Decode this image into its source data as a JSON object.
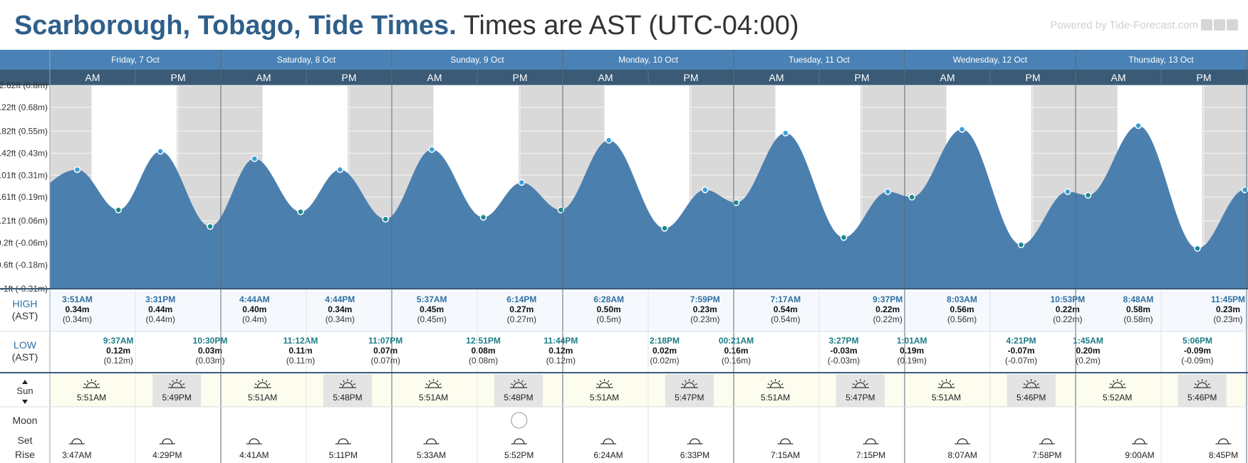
{
  "header": {
    "location": "Scarborough, Tobago, Tide Times.",
    "timezone": "Times are AST (UTC-04:00)",
    "powered_by": "Powered by Tide-Forecast.com"
  },
  "colors": {
    "header_bar": "#4a82b5",
    "subheader_bar": "#3a5a76",
    "tide_fill": "#4b7fae",
    "night": "#d9d9d9",
    "high_row": "#f5f9fd",
    "sun_row": "#fcfcef",
    "accent": "#2a8fbd",
    "label_blue": "#2f6fa3",
    "low_label": "#1a7e86"
  },
  "chart_data": {
    "type": "area",
    "title": "Scarborough, Tobago, Tide Times.",
    "subtitle": "Times are AST (UTC-04:00)",
    "x_unit": "hours from Fri 7 Oct 00:00 AST",
    "y_unit": "m",
    "ylim": [
      -0.31,
      0.8
    ],
    "y_ticks": [
      {
        "m": 0.8,
        "label": "2.62ft (0.8m)"
      },
      {
        "m": 0.68,
        "label": "2.22ft (0.68m)"
      },
      {
        "m": 0.55,
        "label": "1.82ft (0.55m)"
      },
      {
        "m": 0.43,
        "label": "1.42ft (0.43m)"
      },
      {
        "m": 0.31,
        "label": "1.01ft (0.31m)"
      },
      {
        "m": 0.19,
        "label": "0.61ft (0.19m)"
      },
      {
        "m": 0.06,
        "label": "0.21ft (0.06m)"
      },
      {
        "m": -0.06,
        "label": "-0.2ft (-0.06m)"
      },
      {
        "m": -0.18,
        "label": "-0.6ft (-0.18m)"
      },
      {
        "m": -0.31,
        "label": "-1ft (-0.31m)"
      }
    ],
    "days": [
      {
        "label": "Friday, 7 Oct"
      },
      {
        "label": "Saturday, 8 Oct"
      },
      {
        "label": "Sunday, 9 Oct"
      },
      {
        "label": "Monday, 10 Oct"
      },
      {
        "label": "Tuesday, 11 Oct"
      },
      {
        "label": "Wednesday, 12 Oct"
      },
      {
        "label": "Thursday, 13 Oct"
      }
    ],
    "ampm": [
      "AM",
      "PM"
    ],
    "tide_events": [
      {
        "t": -8.0,
        "h": 0.03
      },
      {
        "t": 3.85,
        "h": 0.34,
        "type": "high",
        "time": "3:51AM",
        "m": "0.34m",
        "ft": "(0.34m)"
      },
      {
        "t": 9.62,
        "h": 0.12,
        "type": "low",
        "time": "9:37AM",
        "m": "0.12m",
        "ft": "(0.12m)"
      },
      {
        "t": 15.52,
        "h": 0.44,
        "type": "high",
        "time": "3:31PM",
        "m": "0.44m",
        "ft": "(0.44m)"
      },
      {
        "t": 22.5,
        "h": 0.03,
        "type": "low",
        "time": "10:30PM",
        "m": "0.03m",
        "ft": "(0.03m)"
      },
      {
        "t": 28.73,
        "h": 0.4,
        "type": "high",
        "time": "4:44AM",
        "m": "0.40m",
        "ft": "(0.4m)"
      },
      {
        "t": 35.2,
        "h": 0.11,
        "type": "low",
        "time": "11:12AM",
        "m": "0.11m",
        "ft": "(0.11m)"
      },
      {
        "t": 40.73,
        "h": 0.34,
        "type": "high",
        "time": "4:44PM",
        "m": "0.34m",
        "ft": "(0.34m)"
      },
      {
        "t": 47.12,
        "h": 0.07,
        "type": "low",
        "time": "11:07PM",
        "m": "0.07m",
        "ft": "(0.07m)"
      },
      {
        "t": 53.62,
        "h": 0.45,
        "type": "high",
        "time": "5:37AM",
        "m": "0.45m",
        "ft": "(0.45m)"
      },
      {
        "t": 60.85,
        "h": 0.08,
        "type": "low",
        "time": "12:51PM",
        "m": "0.08m",
        "ft": "(0.08m)"
      },
      {
        "t": 66.23,
        "h": 0.27,
        "type": "high",
        "time": "6:14PM",
        "m": "0.27m",
        "ft": "(0.27m)"
      },
      {
        "t": 71.73,
        "h": 0.12,
        "type": "low",
        "time": "11:44PM",
        "m": "0.12m",
        "ft": "(0.12m)"
      },
      {
        "t": 78.47,
        "h": 0.5,
        "type": "high",
        "time": "6:28AM",
        "m": "0.50m",
        "ft": "(0.5m)"
      },
      {
        "t": 86.3,
        "h": 0.02,
        "type": "low",
        "time": "2:18PM",
        "m": "0.02m",
        "ft": "(0.02m)"
      },
      {
        "t": 91.98,
        "h": 0.23,
        "type": "high",
        "time": "7:59PM",
        "m": "0.23m",
        "ft": "(0.23m)"
      },
      {
        "t": 96.35,
        "h": 0.16,
        "type": "low",
        "time": "00:21AM",
        "m": "0.16m",
        "ft": "(0.16m)"
      },
      {
        "t": 103.28,
        "h": 0.54,
        "type": "high",
        "time": "7:17AM",
        "m": "0.54m",
        "ft": "(0.54m)"
      },
      {
        "t": 111.45,
        "h": -0.03,
        "type": "low",
        "time": "3:27PM",
        "m": "-0.03m",
        "ft": "(-0.03m)"
      },
      {
        "t": 117.62,
        "h": 0.22,
        "type": "high",
        "time": "9:37PM",
        "m": "0.22m",
        "ft": "(0.22m)"
      },
      {
        "t": 121.02,
        "h": 0.19,
        "type": "low",
        "time": "1:01AM",
        "m": "0.19m",
        "ft": "(0.19m)"
      },
      {
        "t": 128.05,
        "h": 0.56,
        "type": "high",
        "time": "8:03AM",
        "m": "0.56m",
        "ft": "(0.56m)"
      },
      {
        "t": 136.35,
        "h": -0.07,
        "type": "low",
        "time": "4:21PM",
        "m": "-0.07m",
        "ft": "(-0.07m)"
      },
      {
        "t": 142.88,
        "h": 0.22,
        "type": "high",
        "time": "10:53PM",
        "m": "0.22m",
        "ft": "(0.22m)"
      },
      {
        "t": 145.75,
        "h": 0.2,
        "type": "low",
        "time": "1:45AM",
        "m": "0.20m",
        "ft": "(0.2m)"
      },
      {
        "t": 152.8,
        "h": 0.58,
        "type": "high",
        "time": "8:48AM",
        "m": "0.58m",
        "ft": "(0.58m)"
      },
      {
        "t": 161.1,
        "h": -0.09,
        "type": "low",
        "time": "5:06PM",
        "m": "-0.09m",
        "ft": "(-0.09m)"
      },
      {
        "t": 167.75,
        "h": 0.23,
        "type": "high",
        "time": "11:45PM",
        "m": "0.23m",
        "ft": "(0.23m)"
      },
      {
        "t": 175.0,
        "h": 0.17
      }
    ],
    "sun": [
      {
        "rise": 5.85,
        "set": 17.82,
        "rise_label": "5:51AM",
        "set_label": "5:49PM"
      },
      {
        "rise": 29.85,
        "set": 41.8,
        "rise_label": "5:51AM",
        "set_label": "5:48PM"
      },
      {
        "rise": 53.85,
        "set": 65.8,
        "rise_label": "5:51AM",
        "set_label": "5:48PM"
      },
      {
        "rise": 77.85,
        "set": 89.78,
        "rise_label": "5:51AM",
        "set_label": "5:47PM"
      },
      {
        "rise": 101.85,
        "set": 113.78,
        "rise_label": "5:51AM",
        "set_label": "5:47PM"
      },
      {
        "rise": 125.85,
        "set": 137.77,
        "rise_label": "5:51AM",
        "set_label": "5:46PM"
      },
      {
        "rise": 149.87,
        "set": 161.77,
        "rise_label": "5:52AM",
        "set_label": "5:46PM"
      }
    ],
    "moon": [
      {
        "t": 3.78,
        "label": "3:47AM",
        "kind": "set"
      },
      {
        "t": 16.48,
        "label": "4:29PM",
        "kind": "rise"
      },
      {
        "t": 28.68,
        "label": "4:41AM",
        "kind": "set"
      },
      {
        "t": 41.18,
        "label": "5:11PM",
        "kind": "rise"
      },
      {
        "t": 53.55,
        "label": "5:33AM",
        "kind": "set"
      },
      {
        "t": 65.87,
        "label": "5:52PM",
        "kind": "rise",
        "full_moon": true
      },
      {
        "t": 78.4,
        "label": "6:24AM",
        "kind": "set"
      },
      {
        "t": 90.55,
        "label": "6:33PM",
        "kind": "rise"
      },
      {
        "t": 103.25,
        "label": "7:15AM",
        "kind": "set"
      },
      {
        "t": 115.25,
        "label": "7:15PM",
        "kind": "rise"
      },
      {
        "t": 128.12,
        "label": "8:07AM",
        "kind": "set"
      },
      {
        "t": 139.97,
        "label": "7:58PM",
        "kind": "rise"
      },
      {
        "t": 153.0,
        "label": "9:00AM",
        "kind": "set"
      },
      {
        "t": 164.75,
        "label": "8:45PM",
        "kind": "rise"
      }
    ],
    "row_labels": {
      "high": "HIGH",
      "low": "LOW",
      "ast": "(AST)",
      "sun": "Sun",
      "moon": "Moon",
      "set": "Set",
      "rise": "Rise"
    }
  }
}
